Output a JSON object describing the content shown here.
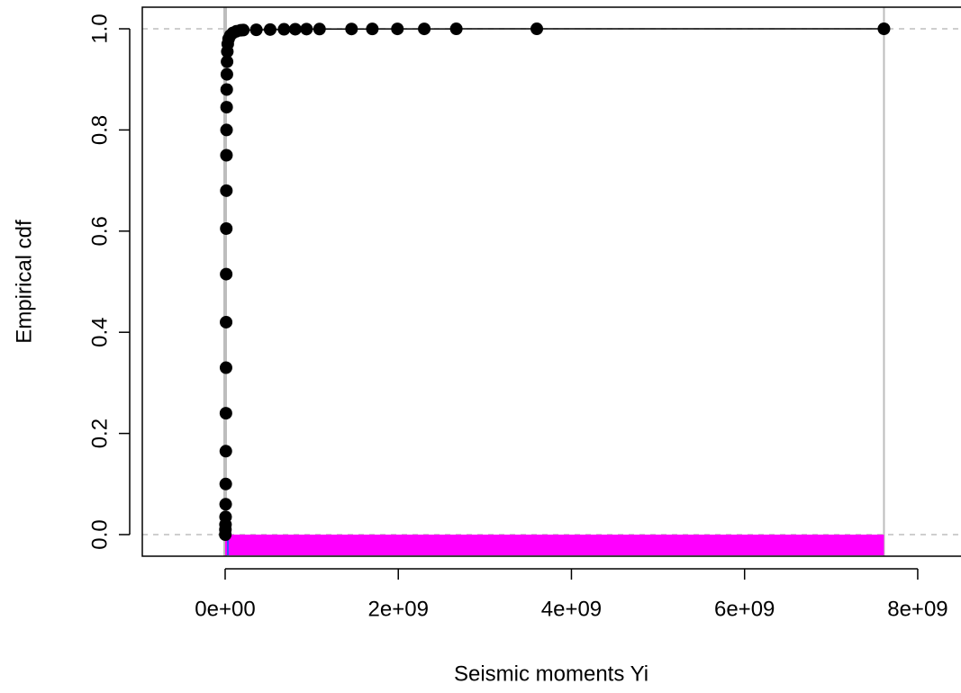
{
  "chart_data": {
    "type": "scatter",
    "x_label": "Seismic moments Yi",
    "y_label": "Empirical cdf",
    "x": [
      2000000,
      3000000,
      4000000,
      5000000,
      6000000,
      7000000,
      8000000,
      9000000,
      10000000,
      11000000,
      12000000,
      13000000,
      14000000,
      15000000,
      16000000,
      17000000,
      18000000,
      20000000,
      22000000,
      25000000,
      30000000,
      40000000,
      60000000,
      90000000,
      130000000,
      180000000,
      210000000,
      360000000,
      520000000,
      680000000,
      810000000,
      940000000,
      1090000000,
      1460000000,
      1700000000,
      1990000000,
      2300000000,
      2670000000,
      3600000000,
      7610000000
    ],
    "series": [
      {
        "color": "#000000",
        "values": [
          0,
          0.01,
          0.02,
          0.035,
          0.06,
          0.1,
          0.165,
          0.24,
          0.33,
          0.42,
          0.515,
          0.605,
          0.68,
          0.75,
          0.8,
          0.845,
          0.88,
          0.91,
          0.935,
          0.955,
          0.97,
          0.98,
          0.987,
          0.992,
          0.995,
          0.997,
          0.9975,
          0.998,
          0.9985,
          0.999,
          0.9992,
          0.9994,
          0.9995,
          0.9996,
          0.9997,
          0.9998,
          0.9998,
          0.9999,
          0.9999,
          1
        ]
      }
    ],
    "xlim": [
      -957000000,
      8500000000
    ],
    "ylim": [
      -0.0427,
      1.0427
    ],
    "xticks": [
      {
        "value": 0,
        "label": "0e+00"
      },
      {
        "value": 2000000000,
        "label": "2e+09"
      },
      {
        "value": 4000000000,
        "label": "4e+09"
      },
      {
        "value": 6000000000,
        "label": "6e+09"
      },
      {
        "value": 8000000000,
        "label": "8e+09"
      }
    ],
    "yticks": [
      {
        "value": 0,
        "label": "0.0"
      },
      0.2,
      0.4,
      0.6,
      0.8,
      {
        "value": 1,
        "label": "1.0"
      }
    ],
    "hlines": [
      0,
      1
    ],
    "vlines": [
      0,
      7610000000
    ],
    "highlight": {
      "from": 0,
      "to": 7610000000,
      "color": "#ff00ff"
    }
  }
}
